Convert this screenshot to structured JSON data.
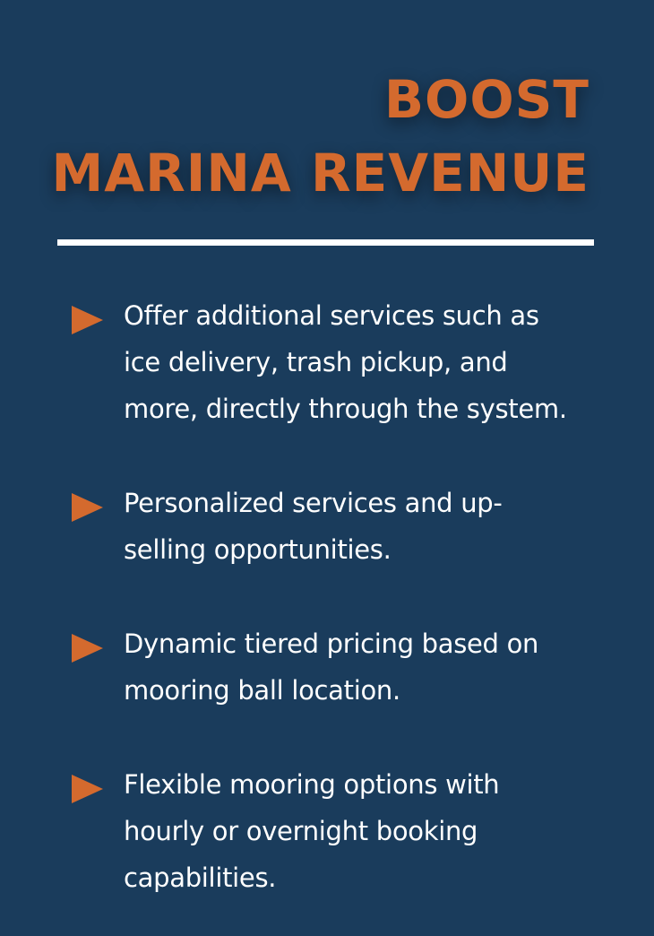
{
  "title": {
    "line1": "BOOST",
    "line2": "MARINA REVENUE"
  },
  "colors": {
    "background": "#1a3c5c",
    "accent": "#d46a2e",
    "text": "#ffffff"
  },
  "items": [
    {
      "icon": "triangle-right-icon",
      "lines": [
        "Offer additional services such as",
        "ice delivery, trash pickup, and",
        "more, directly through the system."
      ]
    },
    {
      "icon": "triangle-right-icon",
      "lines": [
        "Personalized services and up-",
        "selling opportunities."
      ]
    },
    {
      "icon": "triangle-right-icon",
      "lines": [
        "Dynamic tiered pricing based on",
        "mooring ball location."
      ]
    },
    {
      "icon": "triangle-right-icon",
      "lines": [
        "Flexible mooring options with",
        "hourly or overnight booking",
        "capabilities."
      ]
    }
  ]
}
